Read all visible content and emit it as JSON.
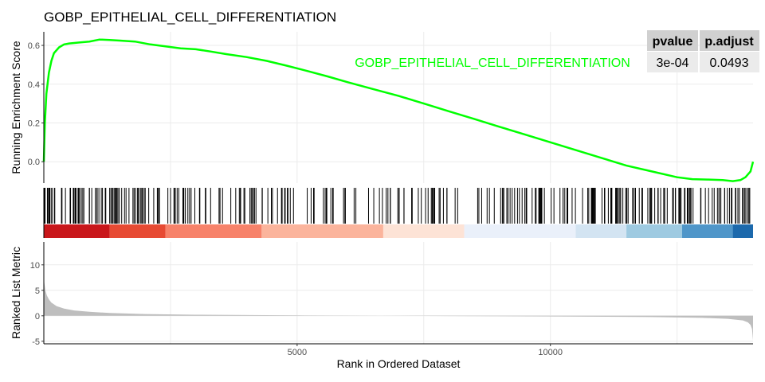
{
  "chart_data": {
    "type": "line",
    "title": "GOBP_EPITHELIAL_CELL_DIFFERENTIATION",
    "gene_set_label": "GOBP_EPITHELIAL_CELL_DIFFERENTIATION",
    "line_color": "#00ff00",
    "x_axis": {
      "label": "Rank in Ordered Dataset",
      "range": [
        0,
        14000
      ],
      "ticks": [
        5000,
        10000
      ],
      "tick_labels": [
        "5000",
        "10000"
      ]
    },
    "es_panel": {
      "ylabel": "Running Enrichment Score",
      "ylim": [
        -0.11,
        0.67
      ],
      "yticks": [
        0.0,
        0.2,
        0.4,
        0.6
      ],
      "ytick_labels": [
        "0.0",
        "0.2",
        "0.4",
        "0.6"
      ],
      "x": [
        0,
        20,
        50,
        100,
        150,
        200,
        300,
        400,
        500,
        700,
        900,
        1100,
        1300,
        1500,
        1800,
        2100,
        2400,
        2700,
        3000,
        3300,
        3600,
        4000,
        4400,
        4800,
        5200,
        5600,
        6000,
        6500,
        7000,
        7500,
        8000,
        8500,
        9000,
        9500,
        10000,
        10500,
        11000,
        11500,
        12000,
        12500,
        12800,
        13100,
        13400,
        13600,
        13750,
        13850,
        13950,
        14000
      ],
      "y": [
        0.0,
        0.2,
        0.35,
        0.46,
        0.52,
        0.56,
        0.59,
        0.605,
        0.61,
        0.615,
        0.62,
        0.63,
        0.628,
        0.625,
        0.62,
        0.605,
        0.595,
        0.585,
        0.58,
        0.568,
        0.555,
        0.54,
        0.52,
        0.495,
        0.468,
        0.44,
        0.41,
        0.375,
        0.34,
        0.3,
        0.26,
        0.22,
        0.18,
        0.14,
        0.1,
        0.06,
        0.02,
        -0.02,
        -0.05,
        -0.08,
        -0.09,
        -0.092,
        -0.095,
        -0.1,
        -0.095,
        -0.08,
        -0.05,
        0.0
      ]
    },
    "hits": {
      "approx_count": 320,
      "note": "vertical tick marks showing positions of gene-set members in the ranked list"
    },
    "rank_colorbar": {
      "colors": [
        "#c9171b",
        "#e74a33",
        "#f7826a",
        "#fbb49c",
        "#fde3d6",
        "#eaf0fa",
        "#d3e4f2",
        "#9ecae1",
        "#4f96c9",
        "#1c69ac"
      ],
      "breaks": [
        0,
        1300,
        2400,
        4300,
        6700,
        8300,
        10500,
        11500,
        12600,
        13600,
        14000
      ]
    },
    "rank_panel": {
      "ylabel": "Ranked List Metric",
      "ylim": [
        -5.5,
        14.5
      ],
      "yticks": [
        -5,
        0,
        5,
        10
      ],
      "ytick_labels": [
        "-5",
        "0",
        "5",
        "10"
      ],
      "fill_color": "#bebebe",
      "x": [
        0,
        10,
        30,
        60,
        100,
        150,
        250,
        400,
        600,
        900,
        1300,
        2000,
        3000,
        5000,
        8000,
        10000,
        12000,
        13000,
        13500,
        13800,
        13900,
        13950,
        13980,
        14000
      ],
      "y": [
        8.0,
        6.5,
        5.0,
        4.0,
        3.2,
        2.6,
        1.9,
        1.4,
        1.05,
        0.8,
        0.55,
        0.35,
        0.2,
        0.08,
        -0.05,
        -0.12,
        -0.25,
        -0.4,
        -0.6,
        -0.9,
        -1.3,
        -1.8,
        -2.6,
        -4.8
      ]
    },
    "table": {
      "headers": [
        "pvalue",
        "p.adjust"
      ],
      "values": [
        "3e-04",
        "0.0493"
      ],
      "header_bg": "#d0d0d0",
      "cell_bg": "#ebebeb"
    }
  }
}
